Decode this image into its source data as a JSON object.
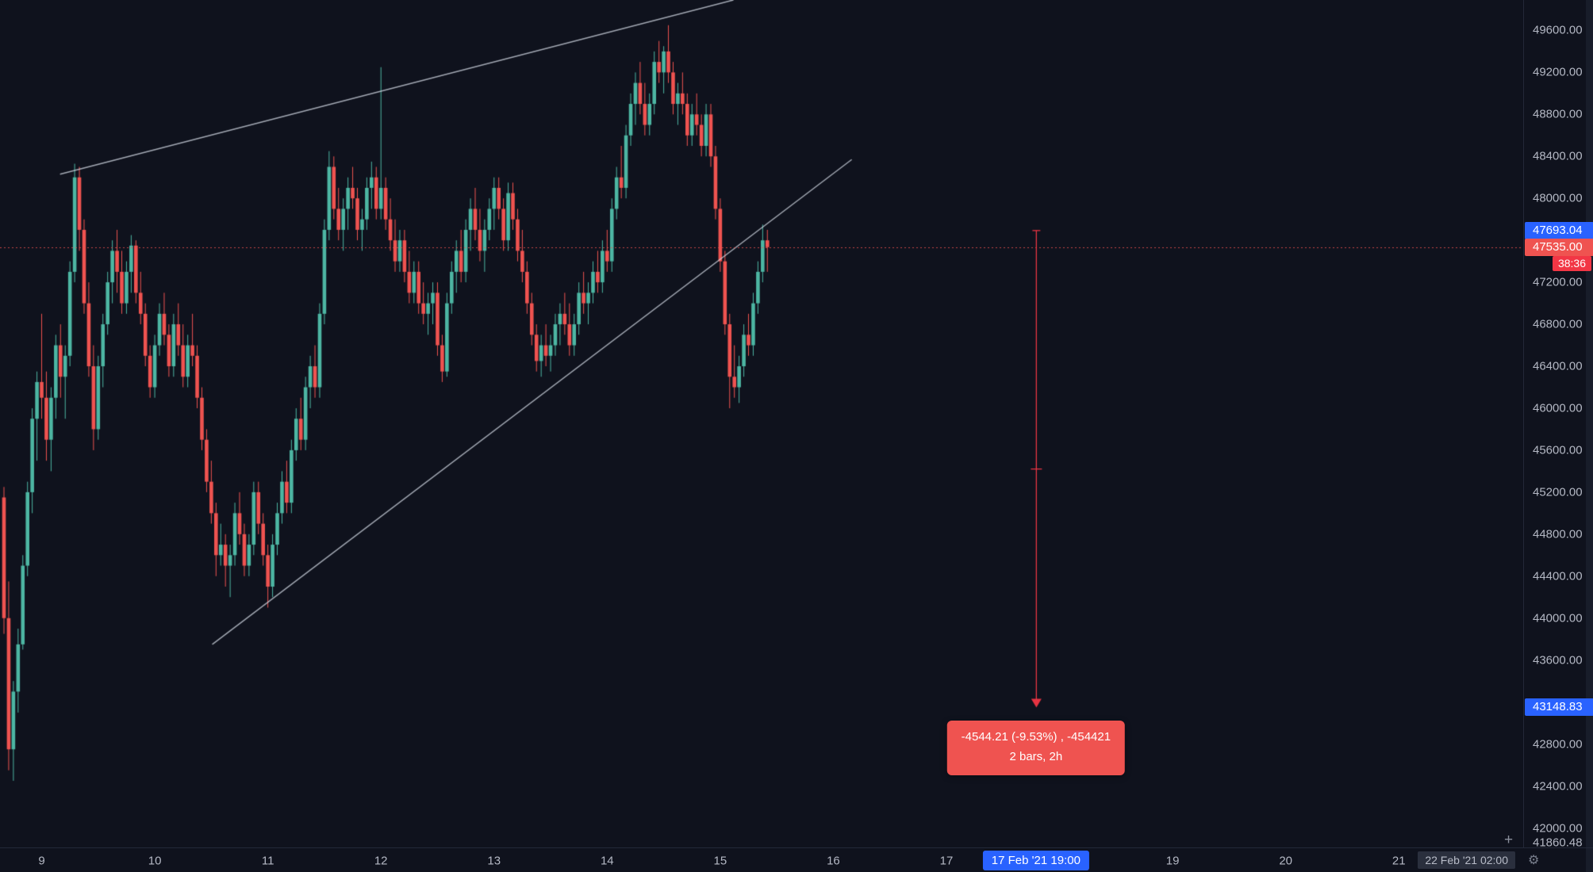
{
  "icons": {
    "plus": "+",
    "gear": "⚙"
  },
  "price_axis": {
    "ticks": [
      "49600.00",
      "49200.00",
      "48800.00",
      "48400.00",
      "48000.00",
      "47200.00",
      "46800.00",
      "46400.00",
      "46000.00",
      "45600.00",
      "45200.00",
      "44800.00",
      "44400.00",
      "44000.00",
      "43600.00",
      "42800.00",
      "42400.00",
      "42000.00"
    ],
    "measure_from": {
      "text": "47693.04",
      "bg": "#2962ff"
    },
    "last_price": {
      "text": "47535.00",
      "bg": "#ef5350"
    },
    "countdown": {
      "text": "38:36",
      "bg": "#f23645"
    },
    "measure_to": {
      "text": "43148.83",
      "bg": "#2962ff"
    },
    "hover_label": {
      "text": "41860.48"
    }
  },
  "time_axis": {
    "days": [
      {
        "t": "9",
        "o": 0
      },
      {
        "t": "10",
        "o": 1
      },
      {
        "t": "11",
        "o": 2
      },
      {
        "t": "12",
        "o": 3
      },
      {
        "t": "13",
        "o": 4
      },
      {
        "t": "14",
        "o": 5
      },
      {
        "t": "15",
        "o": 6
      },
      {
        "t": "16",
        "o": 7
      },
      {
        "t": "17",
        "o": 8
      },
      {
        "t": "19",
        "o": 10
      },
      {
        "t": "20",
        "o": 11
      },
      {
        "t": "21",
        "o": 12
      }
    ],
    "measure_badge": {
      "text": "17 Feb '21  19:00",
      "bg": "#2962ff",
      "bar": 219
    },
    "corner_label": {
      "text": "22 Feb '21  02:00"
    }
  },
  "measure_tool": {
    "bar": 219,
    "from": 47693.04,
    "to": 43148.83,
    "color": "#f23645",
    "tooltip": {
      "line1": "-4544.21 (-9.53%) , -454421",
      "line2": "2 bars, 2h",
      "bg": "#ef5350"
    }
  },
  "chart_data": {
    "type": "candlestick",
    "up_color": "#4db6a3",
    "down_color": "#ef5350",
    "ylim": [
      41815,
      49890
    ],
    "price_line": {
      "value": 47535.0,
      "color": "#ef5350",
      "style": "dotted"
    },
    "trendlines": [
      {
        "b1": 11.9,
        "p1": 48230,
        "b2": 154.8,
        "p2": 49890
      },
      {
        "b1": 44.2,
        "p1": 43750,
        "b2": 179.9,
        "p2": 48370
      }
    ],
    "bars_per_day": 24,
    "first_day_bar_index": 8,
    "first_day_label": "9",
    "candles": [
      [
        45150,
        45250,
        43850,
        44000
      ],
      [
        44000,
        44350,
        42550,
        42750
      ],
      [
        42750,
        43400,
        42450,
        43300
      ],
      [
        43300,
        43900,
        43100,
        43750
      ],
      [
        43750,
        44600,
        43700,
        44500
      ],
      [
        44500,
        45300,
        44400,
        45200
      ],
      [
        45200,
        46000,
        45000,
        45900
      ],
      [
        45900,
        46350,
        45500,
        46250
      ],
      [
        46250,
        46900,
        45900,
        46100
      ],
      [
        46100,
        46350,
        45500,
        45700
      ],
      [
        45700,
        46200,
        45400,
        46100
      ],
      [
        46100,
        46700,
        45900,
        46600
      ],
      [
        46600,
        46800,
        46100,
        46300
      ],
      [
        46300,
        46600,
        45900,
        46500
      ],
      [
        46500,
        47400,
        46400,
        47300
      ],
      [
        47300,
        48330,
        47200,
        48200
      ],
      [
        48200,
        48300,
        47500,
        47700
      ],
      [
        47700,
        47800,
        46900,
        47000
      ],
      [
        47000,
        47200,
        46300,
        46400
      ],
      [
        46400,
        46600,
        45600,
        45800
      ],
      [
        45800,
        46500,
        45700,
        46400
      ],
      [
        46400,
        46900,
        46200,
        46800
      ],
      [
        46800,
        47300,
        46700,
        47200
      ],
      [
        47200,
        47600,
        47000,
        47500
      ],
      [
        47500,
        47700,
        47100,
        47300
      ],
      [
        47300,
        47500,
        46900,
        47000
      ],
      [
        47000,
        47400,
        46900,
        47300
      ],
      [
        47300,
        47650,
        47100,
        47550
      ],
      [
        47550,
        47600,
        47000,
        47100
      ],
      [
        47100,
        47300,
        46800,
        46900
      ],
      [
        46900,
        47000,
        46400,
        46500
      ],
      [
        46500,
        46600,
        46100,
        46200
      ],
      [
        46200,
        46700,
        46100,
        46600
      ],
      [
        46600,
        47000,
        46500,
        46900
      ],
      [
        46900,
        47100,
        46600,
        46700
      ],
      [
        46700,
        46800,
        46300,
        46400
      ],
      [
        46400,
        46900,
        46300,
        46800
      ],
      [
        46800,
        47000,
        46500,
        46600
      ],
      [
        46600,
        46800,
        46200,
        46300
      ],
      [
        46300,
        46700,
        46200,
        46600
      ],
      [
        46600,
        46900,
        46400,
        46500
      ],
      [
        46500,
        46600,
        46000,
        46100
      ],
      [
        46100,
        46200,
        45600,
        45700
      ],
      [
        45700,
        45800,
        45200,
        45300
      ],
      [
        45300,
        45500,
        44900,
        45000
      ],
      [
        45000,
        45100,
        44400,
        44600
      ],
      [
        44600,
        44900,
        44500,
        44700
      ],
      [
        44700,
        44800,
        44300,
        44500
      ],
      [
        44500,
        44700,
        44200,
        44600
      ],
      [
        44600,
        45100,
        44500,
        45000
      ],
      [
        45000,
        45200,
        44700,
        44800
      ],
      [
        44800,
        44900,
        44400,
        44500
      ],
      [
        44500,
        44800,
        44400,
        44700
      ],
      [
        44700,
        45300,
        44600,
        45200
      ],
      [
        45200,
        45300,
        44800,
        44900
      ],
      [
        44900,
        45000,
        44500,
        44600
      ],
      [
        44600,
        44700,
        44100,
        44300
      ],
      [
        44300,
        44800,
        44200,
        44700
      ],
      [
        44700,
        45100,
        44600,
        45000
      ],
      [
        45000,
        45400,
        44900,
        45300
      ],
      [
        45300,
        45500,
        45000,
        45100
      ],
      [
        45100,
        45700,
        45000,
        45600
      ],
      [
        45600,
        46000,
        45500,
        45900
      ],
      [
        45900,
        46100,
        45600,
        45700
      ],
      [
        45700,
        46300,
        45600,
        46200
      ],
      [
        46200,
        46500,
        46000,
        46400
      ],
      [
        46400,
        46600,
        46100,
        46200
      ],
      [
        46200,
        47000,
        46100,
        46900
      ],
      [
        46900,
        47800,
        46800,
        47700
      ],
      [
        47700,
        48450,
        47600,
        48300
      ],
      [
        48300,
        48400,
        47800,
        47900
      ],
      [
        47900,
        48100,
        47600,
        47700
      ],
      [
        47700,
        48000,
        47500,
        47900
      ],
      [
        47900,
        48200,
        47700,
        48100
      ],
      [
        48100,
        48300,
        47900,
        48000
      ],
      [
        48000,
        48100,
        47600,
        47700
      ],
      [
        47700,
        47900,
        47500,
        47800
      ],
      [
        47800,
        48200,
        47700,
        48100
      ],
      [
        48100,
        48350,
        47900,
        48200
      ],
      [
        48200,
        48300,
        47800,
        47900
      ],
      [
        47900,
        49250,
        47800,
        48100
      ],
      [
        48100,
        48200,
        47700,
        47800
      ],
      [
        47800,
        48000,
        47500,
        47600
      ],
      [
        47600,
        47800,
        47300,
        47400
      ],
      [
        47400,
        47700,
        47300,
        47600
      ],
      [
        47600,
        47700,
        47200,
        47300
      ],
      [
        47300,
        47500,
        47000,
        47100
      ],
      [
        47100,
        47400,
        47000,
        47300
      ],
      [
        47300,
        47400,
        46900,
        47000
      ],
      [
        47000,
        47200,
        46800,
        46900
      ],
      [
        46900,
        47100,
        46700,
        47000
      ],
      [
        47000,
        47200,
        46800,
        47100
      ],
      [
        47100,
        47200,
        46500,
        46600
      ],
      [
        46600,
        46700,
        46250,
        46350
      ],
      [
        46350,
        47100,
        46300,
        47000
      ],
      [
        47000,
        47400,
        46900,
        47300
      ],
      [
        47300,
        47600,
        47100,
        47500
      ],
      [
        47500,
        47700,
        47200,
        47300
      ],
      [
        47300,
        47800,
        47200,
        47700
      ],
      [
        47700,
        48000,
        47500,
        47900
      ],
      [
        47900,
        48100,
        47600,
        47700
      ],
      [
        47700,
        47900,
        47400,
        47500
      ],
      [
        47500,
        47800,
        47300,
        47700
      ],
      [
        47700,
        48000,
        47600,
        47900
      ],
      [
        47900,
        48200,
        47700,
        48100
      ],
      [
        48100,
        48200,
        47800,
        47900
      ],
      [
        47900,
        48000,
        47500,
        47600
      ],
      [
        47600,
        48150,
        47500,
        48050
      ],
      [
        48050,
        48150,
        47700,
        47800
      ],
      [
        47800,
        47900,
        47400,
        47500
      ],
      [
        47500,
        47700,
        47200,
        47300
      ],
      [
        47300,
        47400,
        46900,
        47000
      ],
      [
        47000,
        47100,
        46600,
        46700
      ],
      [
        46700,
        46800,
        46350,
        46450
      ],
      [
        46450,
        46700,
        46300,
        46600
      ],
      [
        46600,
        46800,
        46400,
        46500
      ],
      [
        46500,
        46700,
        46350,
        46600
      ],
      [
        46600,
        46900,
        46500,
        46800
      ],
      [
        46800,
        47000,
        46600,
        46900
      ],
      [
        46900,
        47100,
        46700,
        46800
      ],
      [
        46800,
        47000,
        46500,
        46600
      ],
      [
        46600,
        46900,
        46500,
        46800
      ],
      [
        46800,
        47200,
        46700,
        47100
      ],
      [
        47100,
        47300,
        46900,
        47000
      ],
      [
        47000,
        47200,
        46800,
        47100
      ],
      [
        47100,
        47400,
        47000,
        47300
      ],
      [
        47300,
        47500,
        47100,
        47200
      ],
      [
        47200,
        47600,
        47100,
        47500
      ],
      [
        47500,
        47700,
        47300,
        47400
      ],
      [
        47400,
        48000,
        47300,
        47900
      ],
      [
        47900,
        48300,
        47800,
        48200
      ],
      [
        48200,
        48500,
        48000,
        48100
      ],
      [
        48100,
        48700,
        48000,
        48600
      ],
      [
        48600,
        49000,
        48500,
        48900
      ],
      [
        48900,
        49200,
        48700,
        49100
      ],
      [
        49100,
        49300,
        48800,
        48900
      ],
      [
        48900,
        49100,
        48600,
        48700
      ],
      [
        48700,
        49000,
        48600,
        48900
      ],
      [
        48900,
        49400,
        48800,
        49300
      ],
      [
        49300,
        49500,
        49100,
        49200
      ],
      [
        49200,
        49450,
        49000,
        49400
      ],
      [
        49400,
        49650,
        49100,
        49200
      ],
      [
        49200,
        49300,
        48800,
        48900
      ],
      [
        48900,
        49100,
        48700,
        49000
      ],
      [
        49000,
        49200,
        48800,
        48900
      ],
      [
        48900,
        49000,
        48500,
        48600
      ],
      [
        48600,
        48900,
        48500,
        48800
      ],
      [
        48800,
        49000,
        48600,
        48700
      ],
      [
        48700,
        48800,
        48400,
        48500
      ],
      [
        48500,
        48900,
        48400,
        48800
      ],
      [
        48800,
        48900,
        48300,
        48400
      ],
      [
        48400,
        48500,
        47800,
        47900
      ],
      [
        47900,
        48000,
        47300,
        47400
      ],
      [
        47400,
        47500,
        46700,
        46800
      ],
      [
        46800,
        46900,
        46000,
        46300
      ],
      [
        46300,
        46600,
        46100,
        46200
      ],
      [
        46200,
        46500,
        46050,
        46400
      ],
      [
        46400,
        46800,
        46300,
        46700
      ],
      [
        46700,
        46900,
        46500,
        46600
      ],
      [
        46600,
        47100,
        46500,
        47000
      ],
      [
        47000,
        47400,
        46900,
        47300
      ],
      [
        47300,
        47750,
        47200,
        47600
      ],
      [
        47600,
        47700,
        47300,
        47535
      ]
    ]
  }
}
